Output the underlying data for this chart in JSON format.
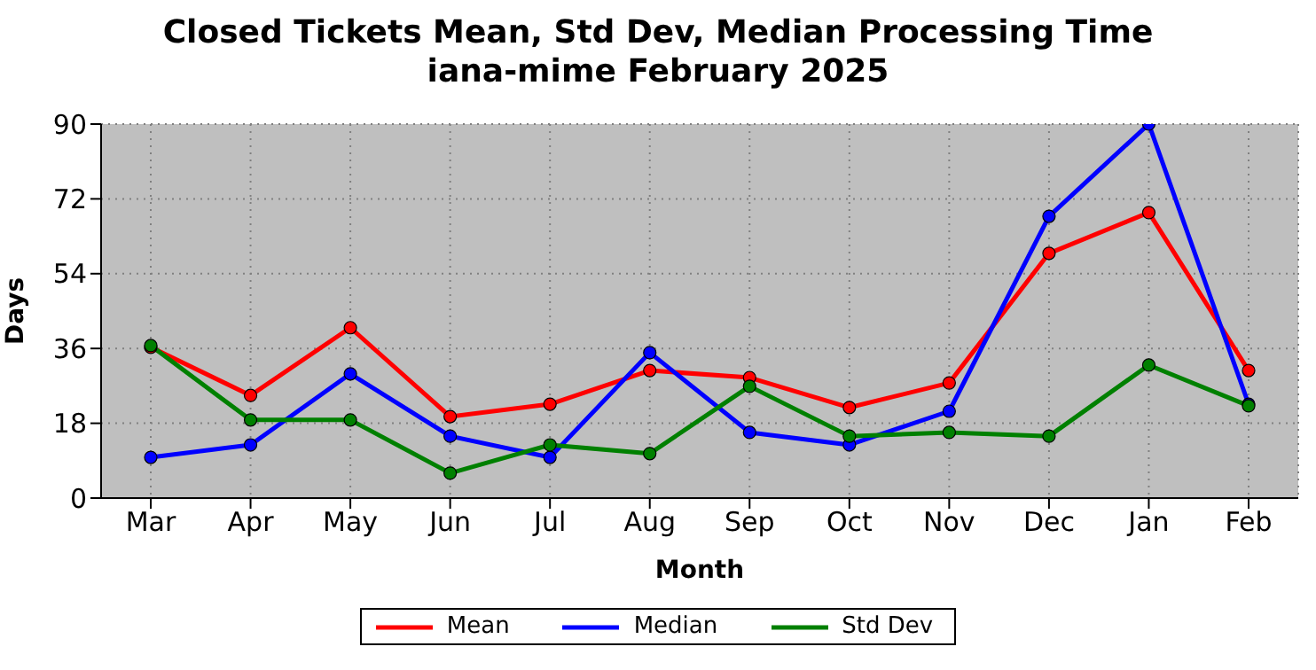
{
  "chart_data": {
    "type": "line",
    "title": "Closed Tickets Mean, Std Dev, Median Processing Time\niana-mime February 2025",
    "xlabel": "Month",
    "ylabel": "Days",
    "categories": [
      "Mar",
      "Apr",
      "May",
      "Jun",
      "Jul",
      "Aug",
      "Sep",
      "Oct",
      "Nov",
      "Dec",
      "Jan",
      "Feb"
    ],
    "series": [
      {
        "name": "Mean",
        "color": "#ff0000",
        "values": [
          36.3,
          24.7,
          41,
          19.6,
          22.6,
          30.7,
          29,
          21.8,
          27.7,
          58.9,
          68.7,
          30.7
        ]
      },
      {
        "name": "Median",
        "color": "#0000ff",
        "values": [
          9.8,
          12.8,
          29.9,
          14.9,
          9.8,
          35,
          15.8,
          12.8,
          20.9,
          67.8,
          90,
          22.6
        ]
      },
      {
        "name": "Std Dev",
        "color": "#008000",
        "values": [
          36.7,
          18.8,
          18.8,
          6,
          12.8,
          10.7,
          26.9,
          14.9,
          15.8,
          14.9,
          32,
          22.2
        ]
      }
    ],
    "ylim": [
      0,
      90
    ],
    "yticks": [
      0,
      18,
      36,
      54,
      72,
      90
    ],
    "grid": true,
    "legend": "bottom",
    "marker": "circle",
    "line_style": "solid"
  }
}
